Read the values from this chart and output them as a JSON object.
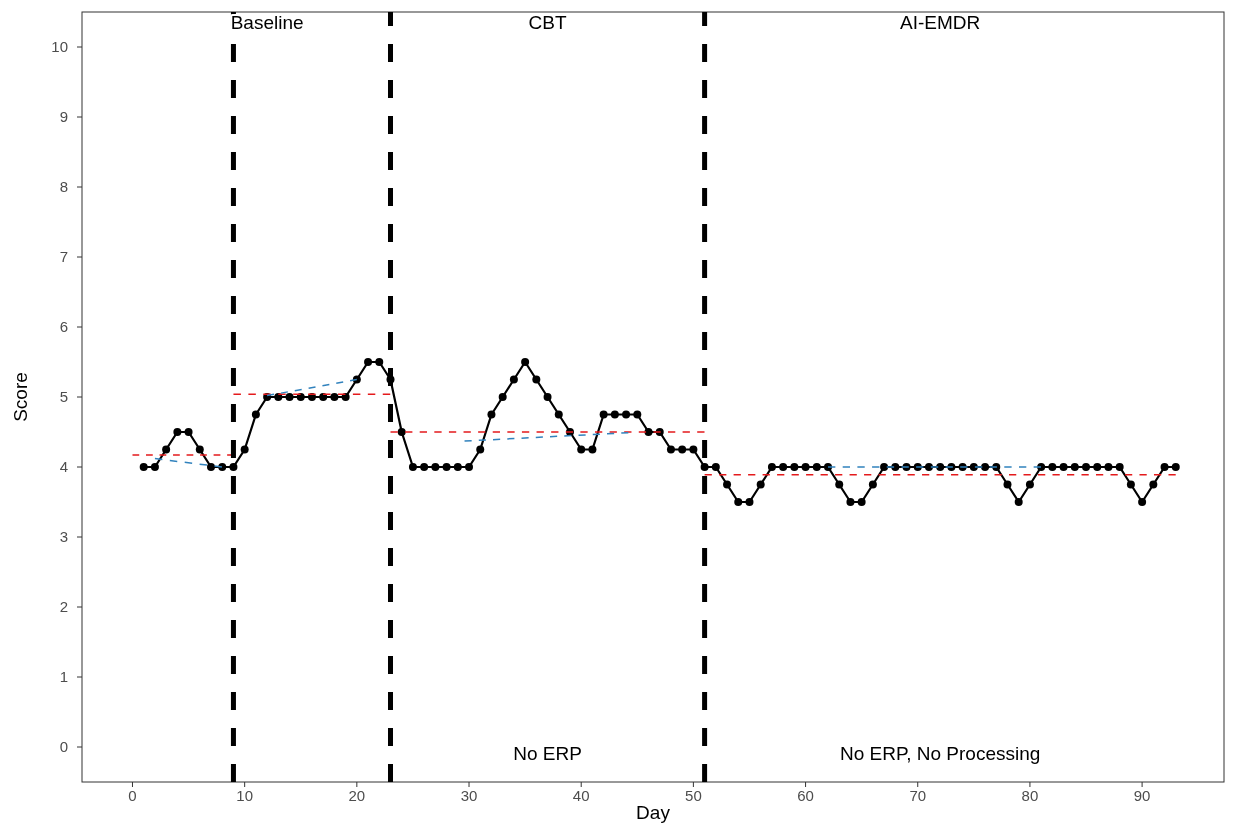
{
  "chart_data": {
    "type": "line",
    "xlabel": "Day",
    "ylabel": "Score",
    "xlim": [
      -4.5,
      97.3
    ],
    "ylim": [
      -0.5,
      10.5
    ],
    "xticks": [
      0,
      10,
      20,
      30,
      40,
      50,
      60,
      70,
      80,
      90
    ],
    "yticks": [
      0,
      1,
      2,
      3,
      4,
      5,
      6,
      7,
      8,
      9,
      10
    ],
    "grid": false,
    "series": [
      {
        "x": [
          1,
          2,
          3,
          4,
          5,
          6,
          7,
          8,
          9,
          10,
          11,
          12,
          13,
          14,
          15,
          16,
          17,
          18,
          19,
          20,
          21,
          22,
          23,
          24,
          25,
          26,
          27,
          28,
          29,
          30,
          31,
          32,
          33,
          34,
          35,
          36,
          37,
          38,
          39,
          40,
          41,
          42,
          43,
          44,
          45,
          46,
          47,
          48,
          49,
          50,
          51,
          52,
          53,
          54,
          55,
          56,
          57,
          58,
          59,
          60,
          61,
          62,
          63,
          64,
          65,
          66,
          67,
          68,
          69,
          70,
          71,
          72,
          73,
          74,
          75,
          76,
          77,
          78,
          79,
          80,
          81,
          82,
          83,
          84,
          85,
          86,
          87,
          88,
          89,
          90,
          91,
          92,
          93
        ],
        "values": [
          4,
          4,
          4.25,
          4.5,
          4.5,
          4.25,
          4,
          4,
          4,
          4.25,
          4.75,
          5,
          5,
          5,
          5,
          5,
          5,
          5,
          5,
          5.25,
          5.5,
          5.5,
          5.25,
          4.5,
          4,
          4,
          4,
          4,
          4,
          4,
          4.25,
          4.75,
          5,
          5.25,
          5.5,
          5.25,
          5,
          4.75,
          4.5,
          4.25,
          4.25,
          4.75,
          4.75,
          4.75,
          4.75,
          4.5,
          4.5,
          4.25,
          4.25,
          4.25,
          4,
          4,
          3.75,
          3.5,
          3.5,
          3.75,
          4,
          4,
          4,
          4,
          4,
          4,
          3.75,
          3.5,
          3.5,
          3.75,
          4,
          4,
          4,
          4,
          4,
          4,
          4,
          4,
          4,
          4,
          4,
          3.75,
          3.5,
          3.75,
          4,
          4,
          4,
          4,
          4,
          4,
          4,
          4,
          3.75,
          3.5,
          3.75,
          4,
          4
        ],
        "color": "#000000",
        "marker": "circle",
        "line_style": "solid"
      },
      {
        "x": [
          0,
          9
        ],
        "values": [
          4.17,
          4.17
        ],
        "color": "#e41a1c",
        "marker": "none",
        "line_style": "dashed"
      },
      {
        "x": [
          9,
          23
        ],
        "values": [
          5.04,
          5.04
        ],
        "color": "#e41a1c",
        "marker": "none",
        "line_style": "dashed"
      },
      {
        "x": [
          23,
          51
        ],
        "values": [
          4.5,
          4.5
        ],
        "color": "#e41a1c",
        "marker": "none",
        "line_style": "dashed"
      },
      {
        "x": [
          51,
          93
        ],
        "values": [
          3.89,
          3.89
        ],
        "color": "#e41a1c",
        "marker": "none",
        "line_style": "dashed"
      },
      {
        "x": [
          2,
          8
        ],
        "values": [
          4.12,
          4.0
        ],
        "color": "#3182bd",
        "marker": "none",
        "line_style": "dashed"
      },
      {
        "x": [
          12,
          20
        ],
        "values": [
          5.02,
          5.25
        ],
        "color": "#3182bd",
        "marker": "none",
        "line_style": "dashed"
      },
      {
        "x": [
          29.6,
          44.2
        ],
        "values": [
          4.37,
          4.49
        ],
        "color": "#3182bd",
        "marker": "none",
        "line_style": "dashed"
      },
      {
        "x": [
          62,
          81
        ],
        "values": [
          4.0,
          4.0
        ],
        "color": "#3182bd",
        "marker": "none",
        "line_style": "dashed"
      }
    ],
    "ref_lines": [
      {
        "axis": "x",
        "value": 9,
        "color": "#000000",
        "line_style": "dashed"
      },
      {
        "axis": "x",
        "value": 23,
        "color": "#000000",
        "line_style": "dashed"
      },
      {
        "axis": "x",
        "value": 51,
        "color": "#000000",
        "line_style": "dashed"
      }
    ],
    "annotations": [
      "Baseline",
      "CBT",
      "AI-EMDR",
      "No ERP",
      "No ERP, No Processing"
    ]
  }
}
